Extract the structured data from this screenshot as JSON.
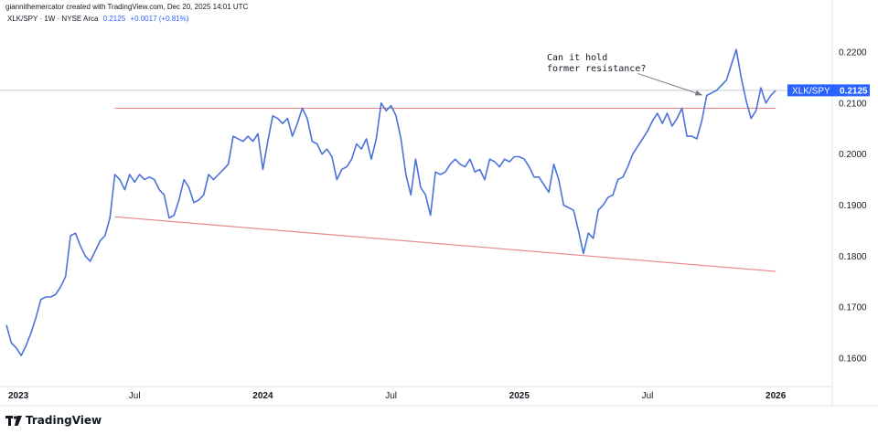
{
  "header": {
    "credit": "giannithemercator created with TradingView.com, Dec 20, 2025 14:01 UTC",
    "symbol": "XLK/SPY · 1W · NYSE Arca",
    "last": "0.2125",
    "change": "+0.0017 (+0.81%)"
  },
  "footer": {
    "brand": "TradingView"
  },
  "annotation": {
    "line1": "Can it hold",
    "line2": "former resistance?"
  },
  "price_label": {
    "symbol": "XLK/SPY",
    "value": "0.2125"
  },
  "colors": {
    "line": "#4a72d8",
    "trend": "#e8848c",
    "accent": "#2962ff"
  },
  "chart_data": {
    "type": "line",
    "title": "XLK/SPY",
    "xlabel": "",
    "ylabel": "",
    "ylim": [
      0.155,
      0.225
    ],
    "yticks": [
      "0.1600",
      "0.1700",
      "0.1800",
      "0.1900",
      "0.2000",
      "0.2100",
      "0.2200"
    ],
    "xticks": [
      {
        "t": 0,
        "label": "2023"
      },
      {
        "t": 26,
        "label": "Jul"
      },
      {
        "t": 52,
        "label": "2024"
      },
      {
        "t": 78,
        "label": "Jul"
      },
      {
        "t": 104,
        "label": "2025"
      },
      {
        "t": 130,
        "label": "Jul"
      },
      {
        "t": 156,
        "label": "2026"
      }
    ],
    "series": [
      {
        "name": "XLK/SPY",
        "values": [
          0.1665,
          0.163,
          0.162,
          0.1605,
          0.1625,
          0.165,
          0.168,
          0.1715,
          0.172,
          0.172,
          0.1725,
          0.174,
          0.176,
          0.184,
          0.1845,
          0.182,
          0.18,
          0.179,
          0.181,
          0.183,
          0.184,
          0.1875,
          0.196,
          0.195,
          0.193,
          0.196,
          0.1945,
          0.196,
          0.195,
          0.1955,
          0.195,
          0.193,
          0.192,
          0.1875,
          0.188,
          0.191,
          0.195,
          0.1935,
          0.1905,
          0.191,
          0.192,
          0.196,
          0.195,
          0.196,
          0.197,
          0.198,
          0.2035,
          0.203,
          0.2025,
          0.2035,
          0.2025,
          0.204,
          0.197,
          0.2025,
          0.2075,
          0.207,
          0.206,
          0.207,
          0.2035,
          0.206,
          0.209,
          0.207,
          0.2025,
          0.202,
          0.2,
          0.201,
          0.1995,
          0.195,
          0.197,
          0.1975,
          0.199,
          0.202,
          0.201,
          0.203,
          0.199,
          0.203,
          0.21,
          0.2085,
          0.2095,
          0.2075,
          0.203,
          0.196,
          0.192,
          0.199,
          0.1935,
          0.192,
          0.188,
          0.1965,
          0.196,
          0.1965,
          0.198,
          0.199,
          0.198,
          0.1975,
          0.199,
          0.1965,
          0.197,
          0.195,
          0.199,
          0.1985,
          0.1975,
          0.199,
          0.1985,
          0.1995,
          0.1995,
          0.199,
          0.1975,
          0.1955,
          0.1955,
          0.194,
          0.1925,
          0.198,
          0.195,
          0.19,
          0.1895,
          0.189,
          0.185,
          0.1805,
          0.1845,
          0.1835,
          0.189,
          0.19,
          0.1915,
          0.192,
          0.195,
          0.1955,
          0.1975,
          0.2,
          0.2015,
          0.203,
          0.2045,
          0.2065,
          0.208,
          0.206,
          0.208,
          0.2055,
          0.207,
          0.209,
          0.2035,
          0.2035,
          0.203,
          0.2065,
          0.2115,
          0.212,
          0.2125,
          0.2135,
          0.2145,
          0.2175,
          0.2205,
          0.215,
          0.2105,
          0.207,
          0.2085,
          0.213,
          0.21,
          0.2115,
          0.2125
        ]
      }
    ],
    "trendlines": [
      {
        "name": "former resistance",
        "t1": 22,
        "y1": 0.209,
        "t2": 156,
        "y2": 0.209
      },
      {
        "name": "lower trendline",
        "t1": 22,
        "y1": 0.1877,
        "t2": 156,
        "y2": 0.177
      }
    ],
    "arrow": {
      "t1": 128,
      "y1": 0.2158,
      "t2": 141,
      "y2": 0.2116
    },
    "current_line": 0.2125,
    "grid": false,
    "legend": "none"
  }
}
